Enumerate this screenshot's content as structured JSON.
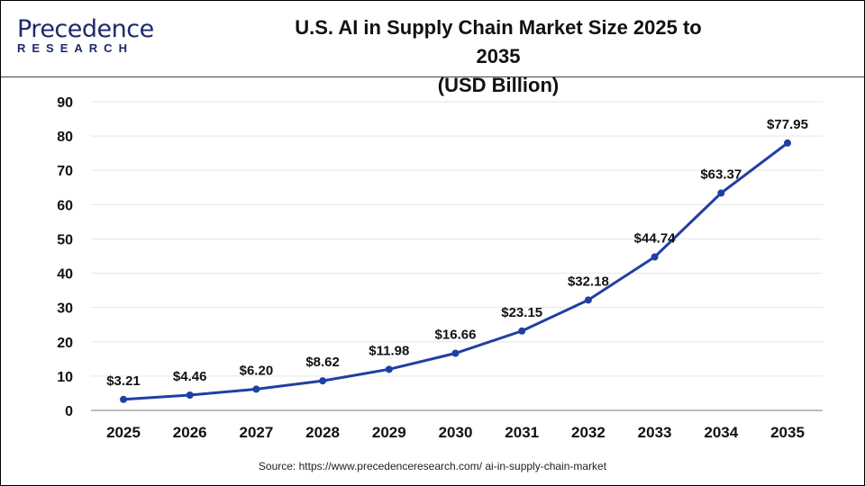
{
  "logo": {
    "line1": "Precedence",
    "line2": "RESEARCH"
  },
  "title_line1": "U.S. AI in Supply Chain Market Size 2025 to 2035",
  "title_line2": "(USD Billion)",
  "source": "Source: https://www.precedenceresearch.com/ ai-in-supply-chain-market",
  "colors": {
    "line": "#1f3fa3",
    "grid": "#e6e6e6",
    "axis": "#bbbbbb"
  },
  "chart_data": {
    "type": "line",
    "title": "U.S. AI in Supply Chain Market Size 2025 to 2035 (USD Billion)",
    "categories": [
      "2025",
      "2026",
      "2027",
      "2028",
      "2029",
      "2030",
      "2031",
      "2032",
      "2033",
      "2034",
      "2035"
    ],
    "values": [
      3.21,
      4.46,
      6.2,
      8.62,
      11.98,
      16.66,
      23.15,
      32.18,
      44.74,
      63.37,
      77.95
    ],
    "labels": [
      "$3.21",
      "$4.46",
      "$6.20",
      "$8.62",
      "$11.98",
      "$16.66",
      "$23.15",
      "$32.18",
      "$44.74",
      "$63.37",
      "$77.95"
    ],
    "ylim": [
      0,
      90
    ],
    "yticks": [
      0,
      10,
      20,
      30,
      40,
      50,
      60,
      70,
      80,
      90
    ],
    "grid": true,
    "legend": "none"
  }
}
